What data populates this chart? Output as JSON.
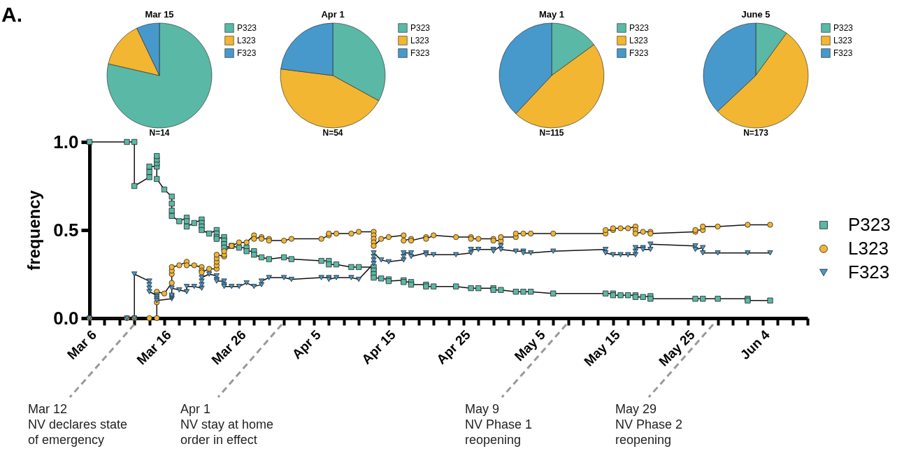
{
  "chart_data": [
    {
      "type": "pie",
      "title": "Mar 15",
      "categories": [
        "P323",
        "L323",
        "F323"
      ],
      "values": [
        78.6,
        14.3,
        7.1
      ],
      "colors": [
        "#5ab8a6",
        "#f2b632",
        "#4799cc"
      ],
      "legend": "right",
      "annotations": [
        "N=14"
      ]
    },
    {
      "type": "pie",
      "title": "Apr 1",
      "categories": [
        "P323",
        "L323",
        "F323"
      ],
      "values": [
        33,
        44,
        23
      ],
      "colors": [
        "#5ab8a6",
        "#f2b632",
        "#4799cc"
      ],
      "legend": "right",
      "annotations": [
        "N=54"
      ]
    },
    {
      "type": "pie",
      "title": "May 1",
      "categories": [
        "P323",
        "L323",
        "F323"
      ],
      "values": [
        15,
        47,
        38
      ],
      "colors": [
        "#5ab8a6",
        "#f2b632",
        "#4799cc"
      ],
      "legend": "right",
      "annotations": [
        "N=115"
      ]
    },
    {
      "type": "pie",
      "title": "June 5",
      "categories": [
        "P323",
        "L323",
        "F323"
      ],
      "values": [
        10,
        53,
        37
      ],
      "colors": [
        "#5ab8a6",
        "#f2b632",
        "#4799cc"
      ],
      "legend": "right",
      "annotations": [
        "N=173"
      ]
    },
    {
      "type": "line",
      "ylabel": "frequency",
      "legend": "right",
      "line_style": "solid",
      "xlim": [
        "--03-06",
        "--06-10"
      ],
      "ylim": [
        0,
        1
      ],
      "yticks": [
        {
          "value": 0,
          "label": "0.0"
        },
        {
          "value": 0.5,
          "label": "0.5"
        },
        {
          "value": 1,
          "label": "1.0"
        }
      ],
      "xticks": [
        {
          "value": "--03-06",
          "label": "Mar 6"
        },
        {
          "value": "--03-08",
          "label": null
        },
        {
          "value": "--03-10",
          "label": null
        },
        {
          "value": "--03-12",
          "label": null
        },
        {
          "value": "--03-14",
          "label": null
        },
        {
          "value": "--03-16",
          "label": "Mar 16"
        },
        {
          "value": "--03-18",
          "label": null
        },
        {
          "value": "--03-20",
          "label": null
        },
        {
          "value": "--03-22",
          "label": null
        },
        {
          "value": "--03-24",
          "label": null
        },
        {
          "value": "--03-26",
          "label": "Mar 26"
        },
        {
          "value": "--03-28",
          "label": null
        },
        {
          "value": "--03-30",
          "label": null
        },
        {
          "value": "--04-01",
          "label": null
        },
        {
          "value": "--04-03",
          "label": null
        },
        {
          "value": "--04-05",
          "label": "Apr 5"
        },
        {
          "value": "--04-07",
          "label": null
        },
        {
          "value": "--04-09",
          "label": null
        },
        {
          "value": "--04-11",
          "label": null
        },
        {
          "value": "--04-13",
          "label": null
        },
        {
          "value": "--04-15",
          "label": "Apr 15"
        },
        {
          "value": "--04-17",
          "label": null
        },
        {
          "value": "--04-19",
          "label": null
        },
        {
          "value": "--04-21",
          "label": null
        },
        {
          "value": "--04-23",
          "label": null
        },
        {
          "value": "--04-25",
          "label": "Apr 25"
        },
        {
          "value": "--04-27",
          "label": null
        },
        {
          "value": "--04-29",
          "label": null
        },
        {
          "value": "--05-01",
          "label": null
        },
        {
          "value": "--05-03",
          "label": null
        },
        {
          "value": "--05-05",
          "label": "May 5"
        },
        {
          "value": "--05-07",
          "label": null
        },
        {
          "value": "--05-09",
          "label": null
        },
        {
          "value": "--05-11",
          "label": null
        },
        {
          "value": "--05-13",
          "label": null
        },
        {
          "value": "--05-15",
          "label": "May 15"
        },
        {
          "value": "--05-17",
          "label": null
        },
        {
          "value": "--05-19",
          "label": null
        },
        {
          "value": "--05-21",
          "label": null
        },
        {
          "value": "--05-23",
          "label": null
        },
        {
          "value": "--05-25",
          "label": "May 25"
        },
        {
          "value": "--05-27",
          "label": null
        },
        {
          "value": "--05-29",
          "label": null
        },
        {
          "value": "--05-31",
          "label": null
        },
        {
          "value": "--06-02",
          "label": null
        },
        {
          "value": "--06-04",
          "label": "Jun 4"
        },
        {
          "value": "--06-06",
          "label": null
        },
        {
          "value": "--06-08",
          "label": null
        },
        {
          "value": "--06-10",
          "label": null
        }
      ],
      "annotations": [
        "A.",
        "Mar 12\nNV declares state\nof emergency",
        "Apr 1\nNV stay at home\norder in effect",
        "May 9\nNV Phase 1\nreopening",
        "May 29\nNV Phase 2\nreopening"
      ],
      "series": [
        {
          "name": "P323",
          "color": "#5ab8a6",
          "marker": "square",
          "x": [
            "--03-06",
            "--03-11",
            "--03-12",
            "--03-12",
            "--03-14",
            "--03-14",
            "--03-14",
            "--03-15",
            "--03-15",
            "--03-15",
            "--03-15",
            "--03-15",
            "--03-16",
            "--03-17",
            "--03-17",
            "--03-17",
            "--03-17",
            "--03-18",
            "--03-19",
            "--03-19",
            "--03-19",
            "--03-20",
            "--03-21",
            "--03-21",
            "--03-21",
            "--03-21",
            "--03-22",
            "--03-23",
            "--03-23",
            "--03-23",
            "--03-23",
            "--03-24",
            "--03-24",
            "--03-24",
            "--03-24",
            "--03-25",
            "--03-26",
            "--03-27",
            "--03-27",
            "--03-28",
            "--03-28",
            "--03-29",
            "--03-30",
            "--04-01",
            "--04-02",
            "--04-06",
            "--04-07",
            "--04-07",
            "--04-08",
            "--04-10",
            "--04-11",
            "--04-13",
            "--04-13",
            "--04-13",
            "--04-13",
            "--04-14",
            "--04-15",
            "--04-15",
            "--04-17",
            "--04-17",
            "--04-18",
            "--04-18",
            "--04-20",
            "--04-20",
            "--04-21",
            "--04-24",
            "--04-26",
            "--04-27",
            "--04-29",
            "--04-29",
            "--04-30",
            "--05-02",
            "--05-03",
            "--05-04",
            "--05-07",
            "--05-14",
            "--05-15",
            "--05-15",
            "--05-16",
            "--05-17",
            "--05-18",
            "--05-18",
            "--05-19",
            "--05-20",
            "--05-20",
            "--05-26",
            "--05-27",
            "--05-29",
            "--06-02",
            "--06-02",
            "--06-05"
          ],
          "values": [
            1,
            1,
            1,
            0.75,
            0.8,
            0.83,
            0.86,
            0.86,
            0.88,
            0.9,
            0.92,
            0.79,
            0.73,
            0.69,
            0.65,
            0.61,
            0.58,
            0.55,
            0.57,
            0.55,
            0.52,
            0.54,
            0.56,
            0.54,
            0.52,
            0.5,
            0.48,
            0.5,
            0.48,
            0.46,
            0.45,
            0.46,
            0.44,
            0.42,
            0.4,
            0.41,
            0.4,
            0.4,
            0.38,
            0.38,
            0.36,
            0.345,
            0.335,
            0.345,
            0.335,
            0.325,
            0.325,
            0.305,
            0.305,
            0.29,
            0.29,
            0.29,
            0.27,
            0.25,
            0.23,
            0.225,
            0.22,
            0.21,
            0.215,
            0.205,
            0.205,
            0.19,
            0.19,
            0.18,
            0.18,
            0.18,
            0.17,
            0.17,
            0.17,
            0.16,
            0.16,
            0.15,
            0.15,
            0.15,
            0.14,
            0.14,
            0.14,
            0.13,
            0.13,
            0.13,
            0.13,
            0.12,
            0.12,
            0.125,
            0.11,
            0.11,
            0.11,
            0.11,
            0.11,
            0.1,
            0.1
          ]
        },
        {
          "name": "L323",
          "color": "#f2b632",
          "marker": "circle",
          "x": [
            "--03-06",
            "--03-11",
            "--03-12",
            "--03-14",
            "--03-15",
            "--03-15",
            "--03-15",
            "--03-16",
            "--03-17",
            "--03-17",
            "--03-17",
            "--03-17",
            "--03-18",
            "--03-19",
            "--03-19",
            "--03-20",
            "--03-21",
            "--03-21",
            "--03-21",
            "--03-22",
            "--03-23",
            "--03-23",
            "--03-23",
            "--03-23",
            "--03-23",
            "--03-24",
            "--03-24",
            "--03-24",
            "--03-25",
            "--03-26",
            "--03-27",
            "--03-28",
            "--03-28",
            "--03-29",
            "--03-29",
            "--03-30",
            "--03-30",
            "--04-01",
            "--04-02",
            "--04-06",
            "--04-07",
            "--04-07",
            "--04-08",
            "--04-10",
            "--04-11",
            "--04-13",
            "--04-13",
            "--04-13",
            "--04-13",
            "--04-13",
            "--04-14",
            "--04-15",
            "--04-17",
            "--04-17",
            "--04-18",
            "--04-18",
            "--04-20",
            "--04-20",
            "--04-21",
            "--04-24",
            "--04-26",
            "--04-26",
            "--04-27",
            "--04-29",
            "--04-29",
            "--04-30",
            "--04-30",
            "--05-02",
            "--05-02",
            "--05-03",
            "--05-04",
            "--05-07",
            "--05-14",
            "--05-14",
            "--05-15",
            "--05-15",
            "--05-16",
            "--05-17",
            "--05-18",
            "--05-18",
            "--05-18",
            "--05-19",
            "--05-20",
            "--05-20",
            "--05-26",
            "--05-26",
            "--05-27",
            "--05-27",
            "--05-29",
            "--06-02",
            "--06-05"
          ],
          "values": [
            0,
            0,
            0,
            0,
            0,
            0.09,
            0.15,
            0.14,
            0.2,
            0.25,
            0.27,
            0.29,
            0.3,
            0.32,
            0.3,
            0.3,
            0.29,
            0.27,
            0.26,
            0.28,
            0.28,
            0.3,
            0.32,
            0.34,
            0.36,
            0.35,
            0.36,
            0.38,
            0.41,
            0.43,
            0.43,
            0.47,
            0.45,
            0.46,
            0.45,
            0.45,
            0.44,
            0.44,
            0.45,
            0.45,
            0.47,
            0.48,
            0.48,
            0.48,
            0.49,
            0.49,
            0.47,
            0.45,
            0.43,
            0.41,
            0.45,
            0.46,
            0.47,
            0.44,
            0.45,
            0.44,
            0.46,
            0.45,
            0.47,
            0.46,
            0.46,
            0.45,
            0.45,
            0.45,
            0.44,
            0.44,
            0.46,
            0.46,
            0.48,
            0.48,
            0.48,
            0.48,
            0.48,
            0.5,
            0.5,
            0.51,
            0.51,
            0.51,
            0.52,
            0.5,
            0.48,
            0.49,
            0.49,
            0.48,
            0.49,
            0.5,
            0.5,
            0.52,
            0.52,
            0.53,
            0.53
          ]
        },
        {
          "name": "F323",
          "color": "#4799cc",
          "marker": "triangle",
          "x": [
            "--03-06",
            "--03-11",
            "--03-12",
            "--03-12",
            "--03-14",
            "--03-14",
            "--03-14",
            "--03-14",
            "--03-15",
            "--03-15",
            "--03-15",
            "--03-15",
            "--03-17",
            "--03-17",
            "--03-17",
            "--03-17",
            "--03-18",
            "--03-19",
            "--03-19",
            "--03-20",
            "--03-21",
            "--03-21",
            "--03-21",
            "--03-21",
            "--03-22",
            "--03-23",
            "--03-23",
            "--03-23",
            "--03-24",
            "--03-24",
            "--03-24",
            "--03-25",
            "--03-26",
            "--03-27",
            "--03-28",
            "--03-29",
            "--03-29",
            "--03-30",
            "--04-01",
            "--04-02",
            "--04-06",
            "--04-07",
            "--04-07",
            "--04-08",
            "--04-10",
            "--04-11",
            "--04-13",
            "--04-13",
            "--04-13",
            "--04-13",
            "--04-14",
            "--04-15",
            "--04-17",
            "--04-17",
            "--04-17",
            "--04-18",
            "--04-18",
            "--04-20",
            "--04-20",
            "--04-21",
            "--04-24",
            "--04-26",
            "--04-26",
            "--04-27",
            "--04-29",
            "--04-29",
            "--04-30",
            "--04-30",
            "--05-02",
            "--05-03",
            "--05-03",
            "--05-04",
            "--05-07",
            "--05-14",
            "--05-14",
            "--05-15",
            "--05-16",
            "--05-17",
            "--05-18",
            "--05-18",
            "--05-18",
            "--05-19",
            "--05-19",
            "--05-20",
            "--05-20",
            "--05-26",
            "--05-26",
            "--05-27",
            "--05-27",
            "--05-29",
            "--06-02",
            "--06-05"
          ],
          "values": [
            0,
            0,
            0,
            0.25,
            0.21,
            0.19,
            0.17,
            0.15,
            0.13,
            0.12,
            0.11,
            0.1,
            0.11,
            0.12,
            0.13,
            0.17,
            0.16,
            0.15,
            0.18,
            0.18,
            0.17,
            0.19,
            0.21,
            0.23,
            0.25,
            0.24,
            0.22,
            0.21,
            0.21,
            0.19,
            0.18,
            0.18,
            0.18,
            0.2,
            0.18,
            0.19,
            0.21,
            0.23,
            0.23,
            0.22,
            0.23,
            0.23,
            0.22,
            0.23,
            0.23,
            0.22,
            0.31,
            0.33,
            0.35,
            0.37,
            0.33,
            0.32,
            0.33,
            0.35,
            0.37,
            0.37,
            0.35,
            0.37,
            0.36,
            0.36,
            0.36,
            0.37,
            0.39,
            0.39,
            0.39,
            0.38,
            0.41,
            0.39,
            0.38,
            0.38,
            0.37,
            0.37,
            0.38,
            0.39,
            0.37,
            0.36,
            0.36,
            0.36,
            0.36,
            0.38,
            0.4,
            0.4,
            0.39,
            0.39,
            0.42,
            0.41,
            0.39,
            0.4,
            0.37,
            0.37,
            0.37,
            0.37
          ]
        }
      ]
    }
  ]
}
